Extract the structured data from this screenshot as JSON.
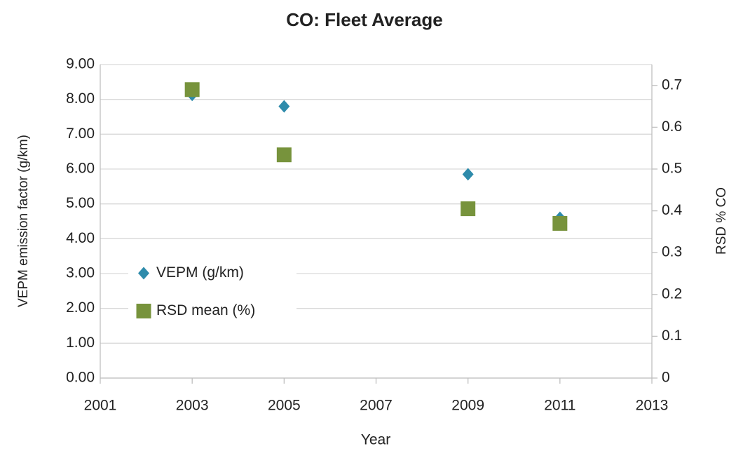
{
  "chart_data": {
    "type": "scatter",
    "title": "CO: Fleet Average",
    "xlabel": "Year",
    "ylabel": "VEPM emission factor (g/km)",
    "y2label": "RSD % CO",
    "xlim": [
      2001,
      2013
    ],
    "xticks": [
      2001,
      2003,
      2005,
      2007,
      2009,
      2011,
      2013
    ],
    "ylim": [
      0,
      9
    ],
    "yticks": [
      {
        "value": 0,
        "label": "0.00"
      },
      {
        "value": 1,
        "label": "1.00"
      },
      {
        "value": 2,
        "label": "2.00"
      },
      {
        "value": 3,
        "label": "3.00"
      },
      {
        "value": 4,
        "label": "4.00"
      },
      {
        "value": 5,
        "label": "5.00"
      },
      {
        "value": 6,
        "label": "6.00"
      },
      {
        "value": 7,
        "label": "7.00"
      },
      {
        "value": 8,
        "label": "8.00"
      },
      {
        "value": 9,
        "label": "9.00"
      }
    ],
    "y2lim": [
      0,
      0.75
    ],
    "y2ticks": [
      0,
      0.1,
      0.2,
      0.3,
      0.4,
      0.5,
      0.6,
      0.7
    ],
    "grid": true,
    "legend": "center left",
    "series": [
      {
        "name": "VEPM (g/km)",
        "color": "#2e8bab",
        "marker": "diamond",
        "x": [
          2003,
          2005,
          2009,
          2011
        ],
        "values": [
          8.13,
          7.8,
          5.85,
          4.6
        ]
      },
      {
        "name": "RSD mean (%)",
        "color": "#77933c",
        "marker": "square",
        "axis": "y2",
        "x": [
          2003,
          2005,
          2009,
          2011
        ],
        "values": [
          0.69,
          0.534,
          0.405,
          0.37
        ]
      }
    ]
  }
}
